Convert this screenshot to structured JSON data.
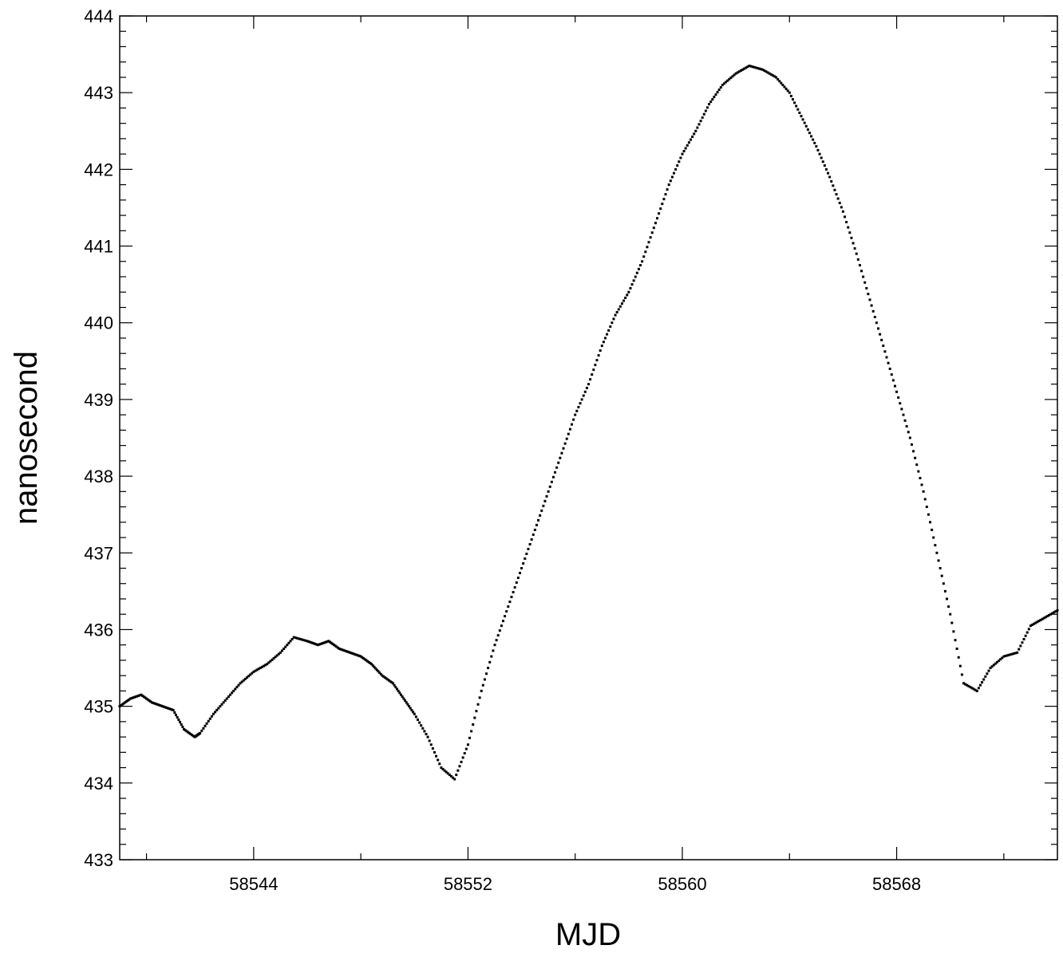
{
  "chart_data": {
    "type": "scatter",
    "title": "",
    "xlabel": "MJD",
    "ylabel": "nanosecond",
    "xlim": [
      58539.0,
      58574.0
    ],
    "ylim": [
      433,
      444
    ],
    "x_major_ticks": [
      58544,
      58552,
      58560,
      58568
    ],
    "x_minor_ticks": [
      58540,
      58548,
      58556,
      58564,
      58572
    ],
    "y_major_ticks": [
      433,
      434,
      435,
      436,
      437,
      438,
      439,
      440,
      441,
      442,
      443,
      444
    ],
    "y_tick_labels": [
      "433",
      "434",
      "435",
      "436",
      "437",
      "438",
      "439",
      "440",
      "441",
      "442",
      "443",
      "444"
    ],
    "x_tick_labels": [
      "58544",
      "58552",
      "58560",
      "58568"
    ],
    "grid": false,
    "marker_color": "#000000",
    "series": [
      {
        "x": [
          58539.0,
          58539.4,
          58539.8,
          58540.2,
          58540.6,
          58541.0,
          58541.4,
          58541.8,
          58542.0,
          58542.5,
          58543.0,
          58543.5,
          58544.0,
          58544.5,
          58545.0,
          58545.5,
          58546.0,
          58546.4,
          58546.8,
          58547.2,
          58547.6,
          58548.0,
          58548.4,
          58548.8,
          58549.2,
          58549.6,
          58550.0,
          58550.5,
          58551.0,
          58551.5,
          58552.0,
          58552.5,
          58553.0,
          58553.5,
          58554.0,
          58554.5,
          58555.0,
          58555.5,
          58556.0,
          58556.5,
          58557.0,
          58557.5,
          58558.0,
          58558.5,
          58559.0,
          58559.5,
          58560.0,
          58560.5,
          58561.0,
          58561.5,
          58562.0,
          58562.5,
          58563.0,
          58563.5,
          58564.0,
          58564.5,
          58565.0,
          58565.5,
          58566.0,
          58566.5,
          58567.0,
          58567.5,
          58568.0,
          58568.5,
          58569.0,
          58569.5,
          58570.0,
          58570.5,
          58571.0,
          58571.5,
          58572.0,
          58572.5,
          58573.0,
          58573.5,
          58574.0
        ],
        "y": [
          435.0,
          435.1,
          435.15,
          435.05,
          435.0,
          434.95,
          434.7,
          434.6,
          434.65,
          434.9,
          435.1,
          435.3,
          435.45,
          435.55,
          435.7,
          435.9,
          435.85,
          435.8,
          435.85,
          435.75,
          435.7,
          435.65,
          435.55,
          435.4,
          435.3,
          435.1,
          434.9,
          434.6,
          434.2,
          434.05,
          434.5,
          435.2,
          435.8,
          436.3,
          436.8,
          437.3,
          437.8,
          438.3,
          438.8,
          439.2,
          439.7,
          440.1,
          440.4,
          440.8,
          441.3,
          441.8,
          442.2,
          442.5,
          442.85,
          443.1,
          443.25,
          443.35,
          443.3,
          443.2,
          443.0,
          442.65,
          442.3,
          441.9,
          441.45,
          440.9,
          440.3,
          439.7,
          439.1,
          438.5,
          437.8,
          437.0,
          436.2,
          435.3,
          435.2,
          435.5,
          435.65,
          435.7,
          436.05,
          436.15,
          436.25
        ]
      }
    ]
  }
}
